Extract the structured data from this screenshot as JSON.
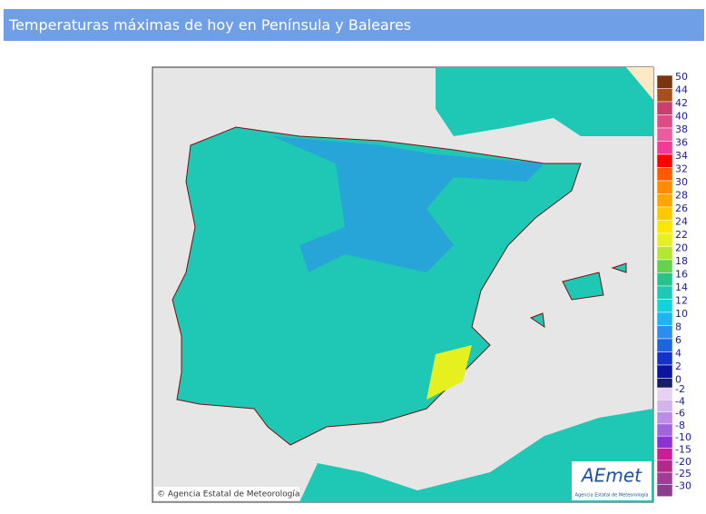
{
  "header": {
    "title": "Temperaturas máximas de hoy en Península y Baleares"
  },
  "map": {
    "credit": "© Agencia Estatal de Meteorología",
    "logo": {
      "name": "AEmet",
      "subtitle": "Agencia Estatal de Meteorología"
    }
  },
  "legend": {
    "positive": [
      {
        "label": 50,
        "color": "#7b3410"
      },
      {
        "label": 44,
        "color": "#a8501c"
      },
      {
        "label": 42,
        "color": "#c8406e"
      },
      {
        "label": 40,
        "color": "#dc4c86"
      },
      {
        "label": 38,
        "color": "#ec5aa0"
      },
      {
        "label": 36,
        "color": "#f03c96"
      },
      {
        "label": 34,
        "color": "#ff0000"
      },
      {
        "label": 32,
        "color": "#ff5a00"
      },
      {
        "label": 30,
        "color": "#ff8c00"
      },
      {
        "label": 28,
        "color": "#ffa500"
      },
      {
        "label": 26,
        "color": "#ffc800"
      },
      {
        "label": 24,
        "color": "#ffe600"
      },
      {
        "label": 22,
        "color": "#e6f01e"
      },
      {
        "label": 20,
        "color": "#b4e632"
      },
      {
        "label": 18,
        "color": "#64d250"
      },
      {
        "label": 16,
        "color": "#28c38c"
      },
      {
        "label": 14,
        "color": "#1ec8b4"
      },
      {
        "label": 12,
        "color": "#14d2dc"
      },
      {
        "label": 10,
        "color": "#1eb4f0"
      },
      {
        "label": 8,
        "color": "#2d8cf0"
      },
      {
        "label": 6,
        "color": "#1e64dc"
      },
      {
        "label": 4,
        "color": "#1432c8"
      },
      {
        "label": 2,
        "color": "#0a14a0"
      },
      {
        "label": 0,
        "color": "#141e64"
      }
    ],
    "negative": [
      {
        "label": -2,
        "color": "#e6d2f0"
      },
      {
        "label": -4,
        "color": "#d2b4eb"
      },
      {
        "label": -6,
        "color": "#be8ce6"
      },
      {
        "label": -8,
        "color": "#a064dc"
      },
      {
        "label": -10,
        "color": "#8c32d2"
      },
      {
        "label": -15,
        "color": "#c81e96"
      },
      {
        "label": -20,
        "color": "#b4288c"
      },
      {
        "label": -25,
        "color": "#a03c96"
      },
      {
        "label": -30,
        "color": "#8c3c8c"
      }
    ]
  }
}
